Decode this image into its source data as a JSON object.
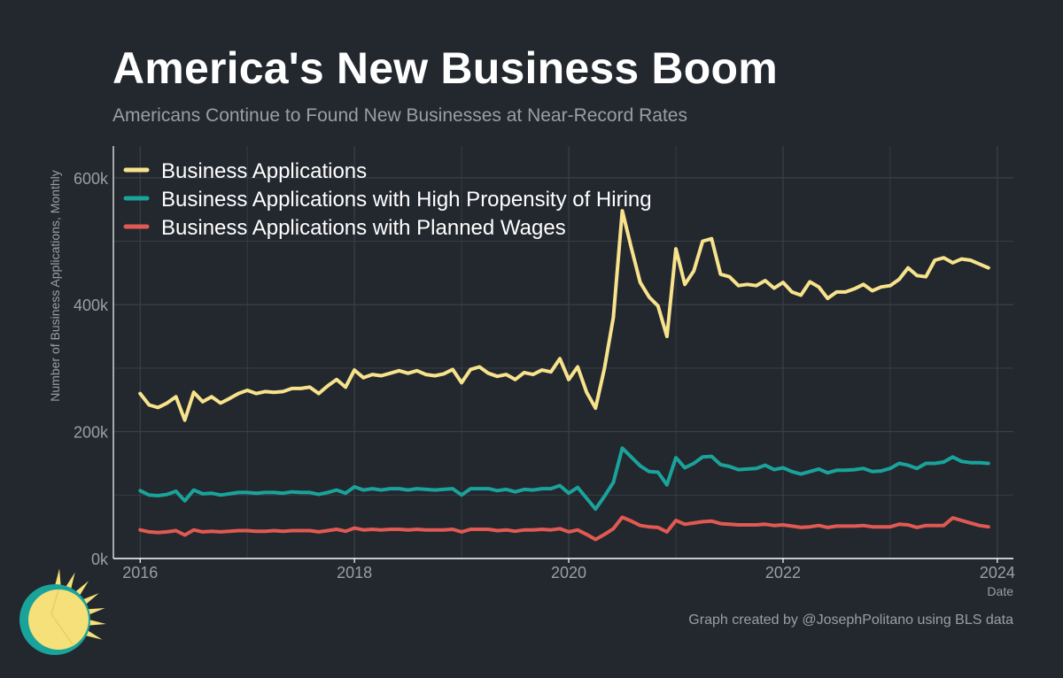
{
  "header": {
    "title": "America's New Business Boom",
    "subtitle": "Americans Continue to Found New Businesses at Near-Record Rates"
  },
  "footer": {
    "credit": "Graph created by @JosephPolitano using BLS data"
  },
  "colors": {
    "background": "#23272e",
    "grid": "#3b4048",
    "axis": "#ffffff",
    "text_muted": "#9a9ea5",
    "legend_text": "#ffffff",
    "logo_sun": "#f5e07a",
    "logo_ring": "#1aa39a"
  },
  "chart_data": {
    "type": "line",
    "xlabel": "Date",
    "ylabel": "Number of Business Applications, Monthly",
    "xlim": [
      2015.75,
      2024.15
    ],
    "ylim": [
      0,
      650000
    ],
    "grid": true,
    "legend_position": "top-left",
    "x_ticks": [
      {
        "value": 2016,
        "label": "2016"
      },
      {
        "value": 2018,
        "label": "2018"
      },
      {
        "value": 2020,
        "label": "2020"
      },
      {
        "value": 2022,
        "label": "2022"
      },
      {
        "value": 2024,
        "label": "2024"
      }
    ],
    "y_ticks": [
      {
        "value": 0,
        "label": "0k"
      },
      {
        "value": 200000,
        "label": "200k"
      },
      {
        "value": 400000,
        "label": "400k"
      },
      {
        "value": 600000,
        "label": "600k"
      }
    ],
    "x_start": 2016.0,
    "x_step_months": 1,
    "series": [
      {
        "name": "Business Applications",
        "color": "#f7e38c",
        "values": [
          260000,
          242000,
          238000,
          245000,
          255000,
          218000,
          262000,
          247000,
          255000,
          245000,
          252000,
          260000,
          265000,
          260000,
          263000,
          262000,
          263000,
          268000,
          268000,
          270000,
          260000,
          272000,
          282000,
          270000,
          297000,
          285000,
          290000,
          288000,
          292000,
          296000,
          292000,
          296000,
          290000,
          288000,
          291000,
          298000,
          277000,
          298000,
          302000,
          292000,
          287000,
          290000,
          282000,
          293000,
          290000,
          297000,
          294000,
          315000,
          282000,
          302000,
          262000,
          237000,
          300000,
          380000,
          548000,
          490000,
          435000,
          412000,
          398000,
          350000,
          488000,
          432000,
          453000,
          500000,
          504000,
          448000,
          444000,
          430000,
          432000,
          430000,
          438000,
          426000,
          435000,
          420000,
          415000,
          436000,
          428000,
          410000,
          420000,
          420000,
          425000,
          432000,
          422000,
          428000,
          430000,
          440000,
          458000,
          446000,
          444000,
          470000,
          474000,
          466000,
          472000,
          470000,
          464000,
          458000
        ]
      },
      {
        "name": "Business Applications with High Propensity of Hiring",
        "color": "#1aa39a",
        "values": [
          107000,
          100000,
          99000,
          101000,
          106000,
          91000,
          108000,
          102000,
          103000,
          100000,
          102000,
          104000,
          104000,
          103000,
          104000,
          104000,
          103000,
          105000,
          104000,
          104000,
          101000,
          104000,
          108000,
          103000,
          113000,
          108000,
          110000,
          108000,
          110000,
          110000,
          108000,
          110000,
          109000,
          108000,
          109000,
          110000,
          100000,
          110000,
          110000,
          110000,
          107000,
          109000,
          105000,
          109000,
          108000,
          110000,
          110000,
          115000,
          103000,
          112000,
          95000,
          78000,
          98000,
          120000,
          174000,
          160000,
          146000,
          137000,
          136000,
          116000,
          159000,
          143000,
          150000,
          160000,
          161000,
          148000,
          145000,
          140000,
          141000,
          142000,
          147000,
          140000,
          143000,
          137000,
          133000,
          137000,
          141000,
          135000,
          139000,
          139000,
          140000,
          142000,
          137000,
          138000,
          142000,
          150000,
          147000,
          142000,
          150000,
          150000,
          152000,
          160000,
          153000,
          151000,
          151000,
          150000
        ]
      },
      {
        "name": "Business Applications with Planned Wages",
        "color": "#e05a52",
        "values": [
          45000,
          42000,
          41000,
          42000,
          44000,
          37000,
          45000,
          42000,
          43000,
          42000,
          43000,
          44000,
          44000,
          43000,
          43000,
          44000,
          43000,
          44000,
          44000,
          44000,
          42000,
          44000,
          46000,
          43000,
          48000,
          45000,
          46000,
          45000,
          46000,
          46000,
          45000,
          46000,
          45000,
          45000,
          45000,
          46000,
          42000,
          46000,
          46000,
          46000,
          44000,
          45000,
          43000,
          45000,
          45000,
          46000,
          45000,
          47000,
          42000,
          45000,
          38000,
          30000,
          38000,
          47000,
          65000,
          59000,
          52000,
          50000,
          49000,
          42000,
          60000,
          54000,
          56000,
          58000,
          59000,
          55000,
          54000,
          53000,
          53000,
          53000,
          54000,
          52000,
          53000,
          51000,
          49000,
          50000,
          52000,
          49000,
          51000,
          51000,
          51000,
          52000,
          50000,
          50000,
          50000,
          54000,
          53000,
          49000,
          52000,
          52000,
          52000,
          64000,
          60000,
          56000,
          52000,
          50000
        ]
      }
    ]
  }
}
